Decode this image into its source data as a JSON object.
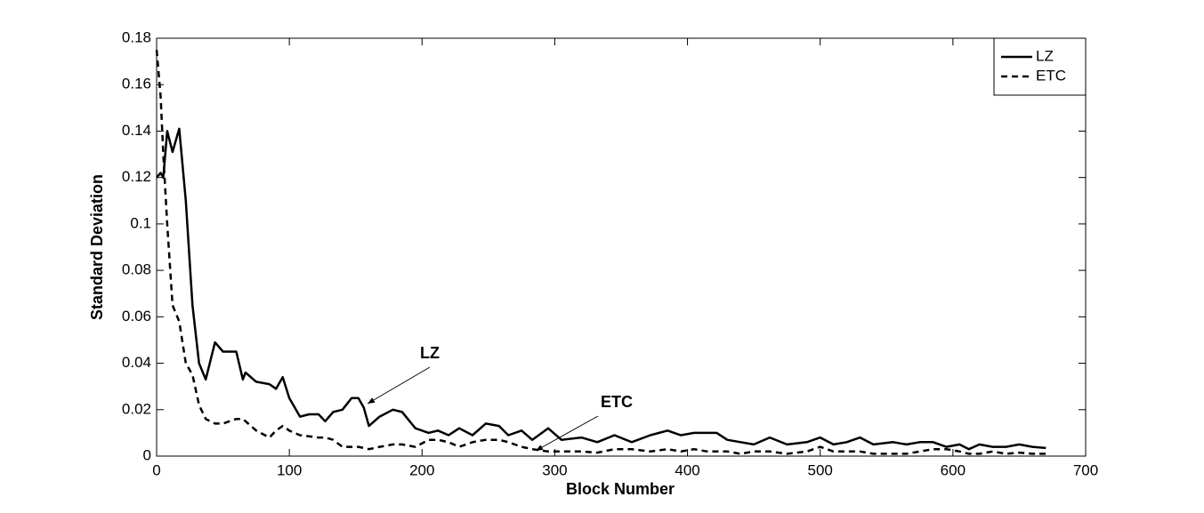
{
  "chart_data": {
    "type": "line",
    "xlabel": "Block Number",
    "ylabel": "Standard Deviation",
    "x": [
      0,
      3,
      5,
      8,
      12,
      17,
      22,
      27,
      32,
      37,
      44,
      50,
      60,
      65,
      67,
      75,
      85,
      90,
      95,
      100,
      108,
      115,
      122,
      127,
      133,
      140,
      147,
      152,
      156,
      160,
      168,
      178,
      185,
      195,
      205,
      212,
      220,
      228,
      238,
      248,
      258,
      265,
      275,
      283,
      295,
      305,
      320,
      332,
      345,
      358,
      372,
      385,
      395,
      405,
      415,
      422,
      430,
      440,
      450,
      462,
      475,
      490,
      500,
      510,
      520,
      530,
      540,
      555,
      565,
      575,
      585,
      595,
      605,
      612,
      620,
      630,
      640,
      650,
      660,
      670
    ],
    "series": [
      {
        "name": "LZ",
        "color": "#000000",
        "linestyle": "solid",
        "values": [
          0.12,
          0.122,
          0.12,
          0.14,
          0.131,
          0.141,
          0.11,
          0.065,
          0.04,
          0.033,
          0.049,
          0.045,
          0.045,
          0.033,
          0.036,
          0.032,
          0.031,
          0.029,
          0.034,
          0.025,
          0.017,
          0.018,
          0.018,
          0.015,
          0.019,
          0.02,
          0.025,
          0.025,
          0.021,
          0.013,
          0.017,
          0.02,
          0.019,
          0.012,
          0.01,
          0.011,
          0.009,
          0.012,
          0.009,
          0.014,
          0.013,
          0.009,
          0.011,
          0.007,
          0.012,
          0.007,
          0.008,
          0.006,
          0.009,
          0.006,
          0.009,
          0.011,
          0.009,
          0.01,
          0.01,
          0.01,
          0.007,
          0.006,
          0.005,
          0.008,
          0.005,
          0.006,
          0.008,
          0.005,
          0.006,
          0.008,
          0.005,
          0.006,
          0.005,
          0.006,
          0.006,
          0.004,
          0.005,
          0.003,
          0.005,
          0.004,
          0.004,
          0.005,
          0.004,
          0.0035
        ]
      },
      {
        "name": "ETC",
        "color": "#000000",
        "linestyle": "dashed",
        "values": [
          0.175,
          0.155,
          0.13,
          0.1,
          0.065,
          0.058,
          0.04,
          0.035,
          0.022,
          0.016,
          0.014,
          0.014,
          0.016,
          0.016,
          0.015,
          0.011,
          0.008,
          0.011,
          0.013,
          0.011,
          0.009,
          0.0085,
          0.008,
          0.008,
          0.007,
          0.004,
          0.004,
          0.004,
          0.0035,
          0.003,
          0.004,
          0.005,
          0.005,
          0.004,
          0.007,
          0.007,
          0.006,
          0.004,
          0.006,
          0.007,
          0.007,
          0.006,
          0.004,
          0.003,
          0.002,
          0.002,
          0.002,
          0.0015,
          0.003,
          0.003,
          0.002,
          0.003,
          0.002,
          0.003,
          0.002,
          0.002,
          0.002,
          0.001,
          0.002,
          0.002,
          0.001,
          0.002,
          0.004,
          0.002,
          0.002,
          0.002,
          0.001,
          0.001,
          0.001,
          0.002,
          0.003,
          0.003,
          0.002,
          0.001,
          0.001,
          0.002,
          0.001,
          0.0015,
          0.001,
          0.001
        ]
      }
    ],
    "annotations": [
      "LZ",
      "ETC"
    ],
    "xlim": [
      0,
      700
    ],
    "xticks": [
      0,
      100,
      200,
      300,
      400,
      500,
      600,
      700
    ],
    "ylim": [
      0,
      0.18
    ],
    "yticks": [
      0,
      0.02,
      0.04,
      0.06,
      0.08,
      0.1,
      0.12,
      0.14,
      0.16,
      0.18
    ],
    "grid": false,
    "legend": "northeast"
  }
}
